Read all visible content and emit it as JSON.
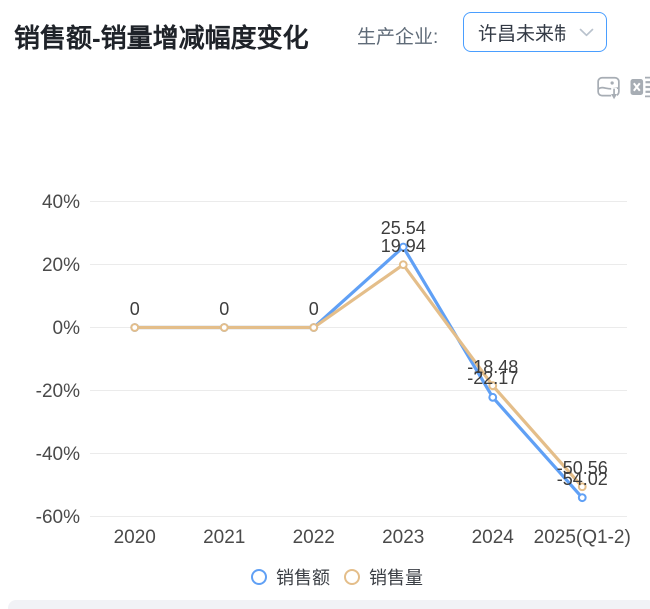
{
  "header": {
    "title": "销售额-销量增减幅度变化",
    "producer_label": "生产企业:",
    "producer_value": "许昌未来制"
  },
  "toolbar": {
    "icons": [
      "export-image-icon",
      "export-excel-icon"
    ]
  },
  "chart_data": {
    "type": "line",
    "categories": [
      "2020",
      "2021",
      "2022",
      "2023",
      "2024",
      "2025(Q1-2)"
    ],
    "series": [
      {
        "name": "销售额",
        "color": "#60a0f5",
        "values": [
          0,
          0,
          0,
          25.54,
          -22.17,
          -54.02
        ]
      },
      {
        "name": "销售量",
        "color": "#e4be8a",
        "values": [
          0,
          0,
          0,
          19.94,
          -18.48,
          -50.56
        ]
      }
    ],
    "yticks": [
      40,
      20,
      0,
      -20,
      -40,
      -60
    ],
    "ytick_suffix": "%",
    "ylim": [
      -60,
      45
    ],
    "grid": true,
    "data_labels": true,
    "legend_position": "bottom",
    "marker": "open-circle"
  },
  "colors": {
    "accent_blue": "#4a9eff",
    "series_blue": "#60a0f5",
    "series_tan": "#e4be8a",
    "grid_line": "#ebebeb",
    "axis_text": "#4a4a4a",
    "label_text": "#3d3d3d",
    "icon_gray": "#a7adb4",
    "bottom_strip": "#f1f2f6"
  }
}
